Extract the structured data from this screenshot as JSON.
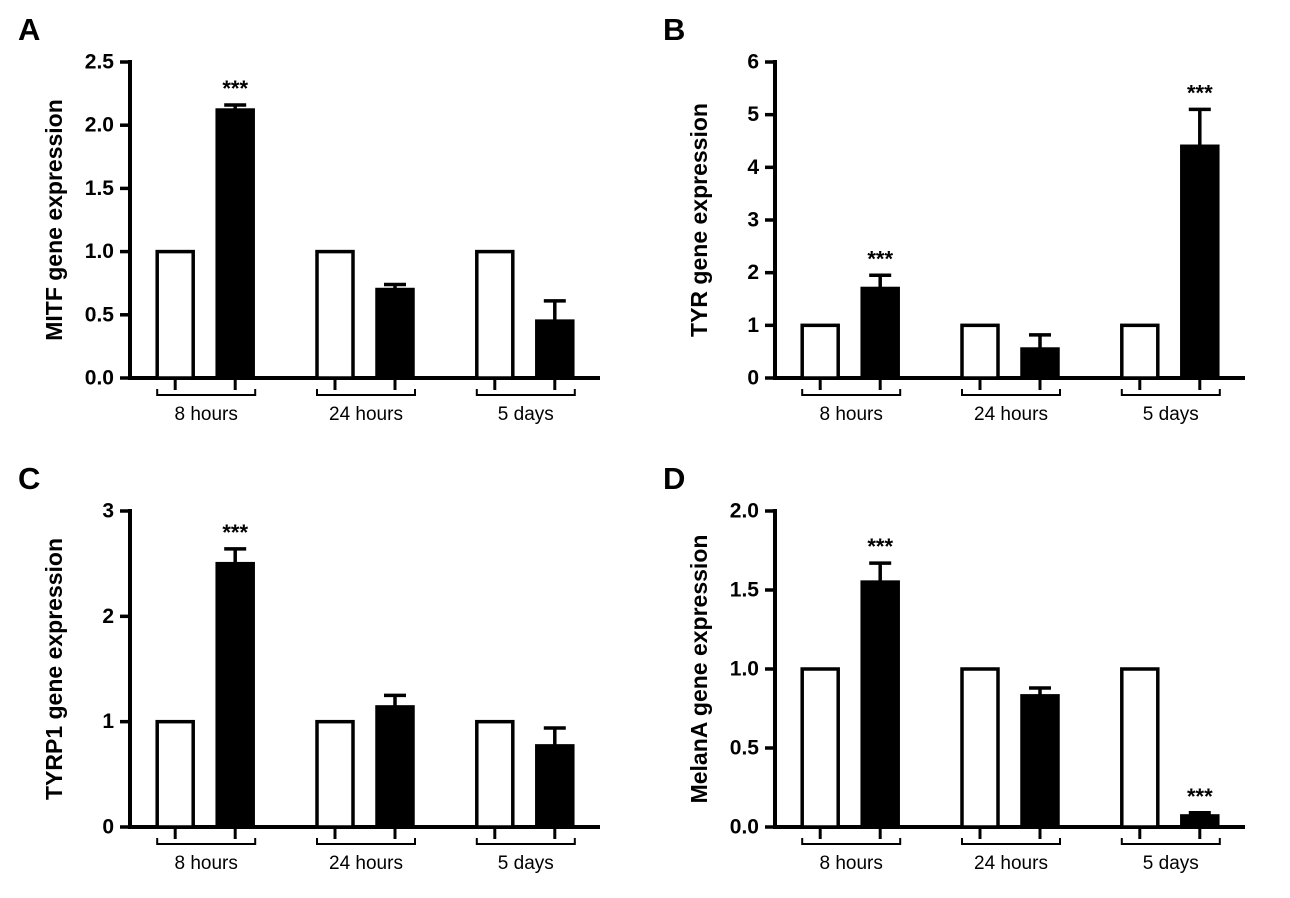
{
  "figure": {
    "background": "#ffffff",
    "ink_color": "#000000",
    "layout": "2x2-panels"
  },
  "chart_data": [
    {
      "type": "bar",
      "panel_letter": "A",
      "title": "",
      "xlabel": "",
      "ylabel": "MITF gene expression",
      "ylim": [
        0,
        2.5
      ],
      "ytick_values": [
        0,
        0.5,
        1.0,
        1.5,
        2.0,
        2.5
      ],
      "ytick_labels": [
        "0.0",
        "0.5",
        "1.0",
        "1.5",
        "2.0",
        "2.5"
      ],
      "categories": [
        "8 hours",
        "24 hours",
        "5 days"
      ],
      "series": [
        {
          "name": "open-bar",
          "fill": "#ffffff",
          "values": [
            1.0,
            1.0,
            1.0
          ],
          "errors": [
            0,
            0,
            0
          ],
          "significance": [
            "",
            "",
            ""
          ]
        },
        {
          "name": "filled-bar",
          "fill": "#000000",
          "values": [
            2.12,
            0.7,
            0.45
          ],
          "errors": [
            0.04,
            0.04,
            0.16
          ],
          "significance": [
            "***",
            "",
            ""
          ]
        }
      ],
      "grid": false,
      "legend": "none"
    },
    {
      "type": "bar",
      "panel_letter": "B",
      "title": "",
      "xlabel": "",
      "ylabel": "TYR gene expression",
      "ylim": [
        0,
        6
      ],
      "ytick_values": [
        0,
        1,
        2,
        3,
        4,
        5,
        6
      ],
      "ytick_labels": [
        "0",
        "1",
        "2",
        "3",
        "4",
        "5",
        "6"
      ],
      "categories": [
        "8 hours",
        "24 hours",
        "5 days"
      ],
      "series": [
        {
          "name": "open-bar",
          "fill": "#ffffff",
          "values": [
            1.0,
            1.0,
            1.0
          ],
          "errors": [
            0,
            0,
            0
          ],
          "significance": [
            "",
            "",
            ""
          ]
        },
        {
          "name": "filled-bar",
          "fill": "#000000",
          "values": [
            1.7,
            0.55,
            4.4
          ],
          "errors": [
            0.25,
            0.27,
            0.7
          ],
          "significance": [
            "***",
            "",
            "***"
          ]
        }
      ],
      "grid": false,
      "legend": "none"
    },
    {
      "type": "bar",
      "panel_letter": "C",
      "title": "",
      "xlabel": "",
      "ylabel": "TYRP1 gene expression",
      "ylim": [
        0,
        3
      ],
      "ytick_values": [
        0,
        1,
        2,
        3
      ],
      "ytick_labels": [
        "0",
        "1",
        "2",
        "3"
      ],
      "categories": [
        "8 hours",
        "24 hours",
        "5 days"
      ],
      "series": [
        {
          "name": "open-bar",
          "fill": "#ffffff",
          "values": [
            1.0,
            1.0,
            1.0
          ],
          "errors": [
            0,
            0,
            0
          ],
          "significance": [
            "",
            "",
            ""
          ]
        },
        {
          "name": "filled-bar",
          "fill": "#000000",
          "values": [
            2.5,
            1.14,
            0.77
          ],
          "errors": [
            0.14,
            0.11,
            0.17
          ],
          "significance": [
            "***",
            "",
            ""
          ]
        }
      ],
      "grid": false,
      "legend": "none"
    },
    {
      "type": "bar",
      "panel_letter": "D",
      "title": "",
      "xlabel": "",
      "ylabel": "MelanA gene expression",
      "ylim": [
        0,
        2.0
      ],
      "ytick_values": [
        0,
        0.5,
        1.0,
        1.5,
        2.0
      ],
      "ytick_labels": [
        "0.0",
        "0.5",
        "1.0",
        "1.5",
        "2.0"
      ],
      "categories": [
        "8 hours",
        "24 hours",
        "5 days"
      ],
      "series": [
        {
          "name": "open-bar",
          "fill": "#ffffff",
          "values": [
            1.0,
            1.0,
            1.0
          ],
          "errors": [
            0,
            0,
            0
          ],
          "significance": [
            "",
            "",
            ""
          ]
        },
        {
          "name": "filled-bar",
          "fill": "#000000",
          "values": [
            1.55,
            0.83,
            0.07
          ],
          "errors": [
            0.12,
            0.05,
            0.02
          ],
          "significance": [
            "***",
            "",
            "***"
          ]
        }
      ],
      "grid": false,
      "legend": "none"
    }
  ]
}
